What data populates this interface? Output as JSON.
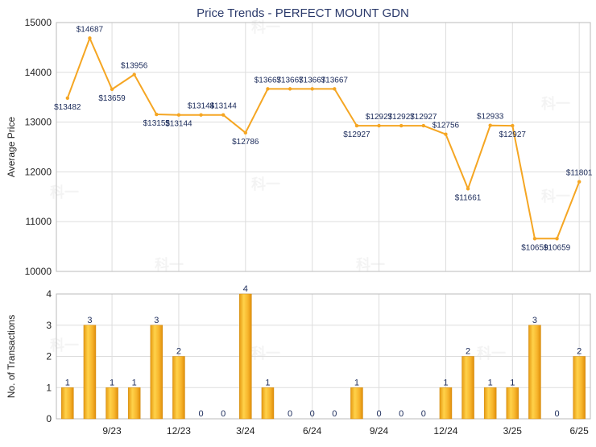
{
  "chart_data": [
    {
      "type": "line",
      "title": "Price Trends - PERFECT MOUNT GDN",
      "xlabel": "",
      "ylabel": "Average Price",
      "ylim": [
        10000,
        15000
      ],
      "yticks": [
        "10000",
        "11000",
        "12000",
        "13000",
        "14000",
        "15000"
      ],
      "grid": true,
      "color": "#f5a623",
      "series": [
        {
          "points": [
            {
              "x": "2023-07",
              "y": 13482,
              "label": "$13482"
            },
            {
              "x": "2023-08",
              "y": 14687,
              "label": "$14687"
            },
            {
              "x": "2023-09",
              "y": 13659,
              "label": "$13659"
            },
            {
              "x": "2023-10",
              "y": 13956,
              "label": "$13956"
            },
            {
              "x": "2023-11",
              "y": 13155,
              "label": "$13155"
            },
            {
              "x": "2023-12",
              "y": 13144,
              "label": "$13144"
            },
            {
              "x": "2024-01",
              "y": 13144,
              "label": "$13144"
            },
            {
              "x": "2024-02",
              "y": 13144,
              "label": "$13144"
            },
            {
              "x": "2024-03",
              "y": 12786,
              "label": "$12786"
            },
            {
              "x": "2024-04",
              "y": 13667,
              "label": "$13667"
            },
            {
              "x": "2024-05",
              "y": 13667,
              "label": "$13667"
            },
            {
              "x": "2024-06",
              "y": 13667,
              "label": "$13667"
            },
            {
              "x": "2024-07",
              "y": 13667,
              "label": "$13667"
            },
            {
              "x": "2024-08",
              "y": 12927,
              "label": "$12927"
            },
            {
              "x": "2024-09",
              "y": 12927,
              "label": "$12927"
            },
            {
              "x": "2024-10",
              "y": 12927,
              "label": "$12927"
            },
            {
              "x": "2024-11",
              "y": 12927,
              "label": "$12927"
            },
            {
              "x": "2024-12",
              "y": 12756,
              "label": "$12756"
            },
            {
              "x": "2025-01",
              "y": 11661,
              "label": "$11661"
            },
            {
              "x": "2025-02",
              "y": 12933,
              "label": "$12933"
            },
            {
              "x": "2025-03",
              "y": 12927,
              "label": "$12927"
            },
            {
              "x": "2025-04",
              "y": 10659,
              "label": "$10659"
            },
            {
              "x": "2025-05",
              "y": 10659,
              "label": "$10659"
            },
            {
              "x": "2025-06",
              "y": 11801,
              "label": "$11801"
            }
          ]
        }
      ]
    },
    {
      "type": "bar",
      "xlabel": "",
      "ylabel": "No. of Transactions",
      "ylim": [
        0,
        4
      ],
      "yticks": [
        "0",
        "1",
        "2",
        "3",
        "4"
      ],
      "grid": true,
      "color": "#f5a623",
      "categories": [
        "2023-07",
        "2023-08",
        "2023-09",
        "2023-10",
        "2023-11",
        "2023-12",
        "2024-01",
        "2024-02",
        "2024-03",
        "2024-04",
        "2024-05",
        "2024-06",
        "2024-07",
        "2024-08",
        "2024-09",
        "2024-10",
        "2024-11",
        "2024-12",
        "2025-01",
        "2025-02",
        "2025-03",
        "2025-04",
        "2025-05",
        "2025-06"
      ],
      "values": [
        1,
        3,
        1,
        1,
        3,
        2,
        0,
        0,
        4,
        1,
        0,
        0,
        0,
        1,
        0,
        0,
        0,
        1,
        2,
        1,
        1,
        3,
        0,
        2
      ],
      "value_labels": [
        "1",
        "3",
        "1",
        "1",
        "3",
        "2",
        "0",
        "0",
        "4",
        "1",
        "0",
        "0",
        "0",
        "1",
        "0",
        "0",
        "0",
        "1",
        "2",
        "1",
        "1",
        "3",
        "0",
        "2"
      ],
      "xticks": [
        {
          "at": "2023-09",
          "label": "9/23"
        },
        {
          "at": "2023-12",
          "label": "12/23"
        },
        {
          "at": "2024-03",
          "label": "3/24"
        },
        {
          "at": "2024-06",
          "label": "6/24"
        },
        {
          "at": "2024-09",
          "label": "9/24"
        },
        {
          "at": "2024-12",
          "label": "12/24"
        },
        {
          "at": "2025-03",
          "label": "3/25"
        },
        {
          "at": "2025-06",
          "label": "6/25"
        }
      ]
    }
  ],
  "watermark": "科一"
}
